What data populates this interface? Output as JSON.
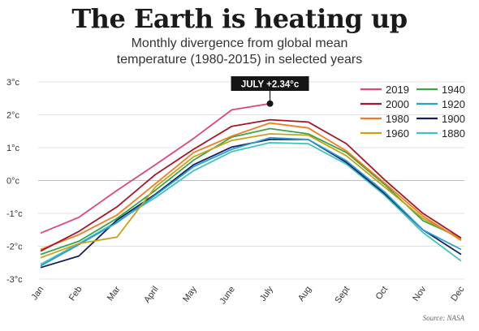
{
  "title": "The Earth is heating up",
  "subtitle_line1": "Monthly divergence from global mean",
  "subtitle_line2": "temperature (1980-2015) in selected years",
  "source": "Source: NASA",
  "chart_data": {
    "type": "line",
    "categories": [
      "Jan",
      "Feb",
      "Mar",
      "April",
      "May",
      "June",
      "July",
      "Aug",
      "Sept",
      "Oct",
      "Nov",
      "Dec"
    ],
    "y_ticks": [
      "3°c",
      "2°c",
      "1°c",
      "0°c",
      "-1°c",
      "-2°c",
      "-3°c"
    ],
    "ylim": [
      -3,
      3
    ],
    "grid": true,
    "legend_position": "top-right",
    "annotation": {
      "text": "JULY +2.34°c",
      "series": "2019",
      "x": "July",
      "y": 2.34
    },
    "series": [
      {
        "name": "2019",
        "color": "#e0457b",
        "values": [
          -1.6,
          -1.12,
          -0.3,
          0.48,
          1.28,
          2.15,
          2.34,
          null,
          null,
          null,
          null,
          null
        ]
      },
      {
        "name": "2000",
        "color": "#a3162b",
        "values": [
          -2.15,
          -1.55,
          -0.8,
          0.18,
          0.95,
          1.65,
          1.85,
          1.78,
          1.12,
          0.02,
          -1.0,
          -1.75
        ]
      },
      {
        "name": "1980",
        "color": "#f07c1e",
        "values": [
          -2.1,
          -1.65,
          -1.05,
          -0.1,
          0.85,
          1.35,
          1.75,
          1.6,
          0.9,
          -0.08,
          -1.08,
          -1.82
        ]
      },
      {
        "name": "1960",
        "color": "#c8a216",
        "values": [
          -2.35,
          -1.92,
          -1.72,
          -0.2,
          0.72,
          1.22,
          1.42,
          1.38,
          0.75,
          -0.2,
          -1.15,
          -1.78
        ]
      },
      {
        "name": "1940",
        "color": "#3aa547",
        "values": [
          -2.25,
          -1.85,
          -1.15,
          -0.3,
          0.62,
          1.32,
          1.58,
          1.42,
          0.85,
          -0.12,
          -1.22,
          -1.75
        ]
      },
      {
        "name": "1920",
        "color": "#2a9ed8",
        "values": [
          -2.6,
          -1.95,
          -1.28,
          -0.45,
          0.42,
          0.95,
          1.3,
          1.25,
          0.6,
          -0.35,
          -1.5,
          -2.1
        ]
      },
      {
        "name": "1900",
        "color": "#14205e",
        "values": [
          -2.65,
          -2.3,
          -1.2,
          -0.42,
          0.48,
          1.02,
          1.25,
          1.25,
          0.55,
          -0.4,
          -1.5,
          -2.25
        ]
      },
      {
        "name": "1880",
        "color": "#3fc3bd",
        "values": [
          -2.55,
          -1.92,
          -1.25,
          -0.52,
          0.3,
          0.88,
          1.15,
          1.12,
          0.5,
          -0.45,
          -1.58,
          -2.45
        ]
      }
    ]
  }
}
